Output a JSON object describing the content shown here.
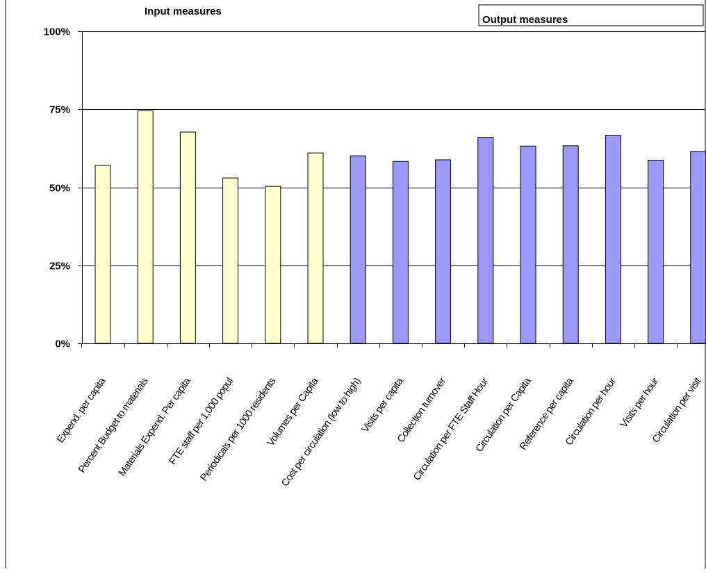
{
  "chart_data": {
    "type": "bar",
    "title": "",
    "xlabel": "",
    "ylabel": "",
    "ylim": [
      0,
      1
    ],
    "yticks": [
      "0%",
      "25%",
      "50%",
      "75%",
      "100%"
    ],
    "grid": true,
    "groups": [
      {
        "label": "Input measures",
        "color": "#ffffcc"
      },
      {
        "label": "Output measures",
        "color": "#9999ff"
      }
    ],
    "categories": [
      "Expend. per capita",
      "Percent Budget to materials",
      "Materials Expend. Per capita",
      "FTE staff per 1,000 popul",
      "Periodicals per 1000 residents",
      "Volumes per Capita",
      "Cost per circulation (low to high)",
      "Visits per capita",
      "Collection turnover",
      "Circulation per FTE Staff Hour",
      "Circulation per Capita",
      "Reference per capita",
      "Circulation per hour",
      "Visits per hour",
      "Circulation per visit"
    ],
    "values": [
      0.57,
      0.745,
      0.677,
      0.53,
      0.503,
      0.61,
      0.601,
      0.583,
      0.588,
      0.66,
      0.632,
      0.633,
      0.667,
      0.587,
      0.615
    ],
    "bar_group": [
      0,
      0,
      0,
      0,
      0,
      0,
      1,
      1,
      1,
      1,
      1,
      1,
      1,
      1,
      1
    ]
  }
}
